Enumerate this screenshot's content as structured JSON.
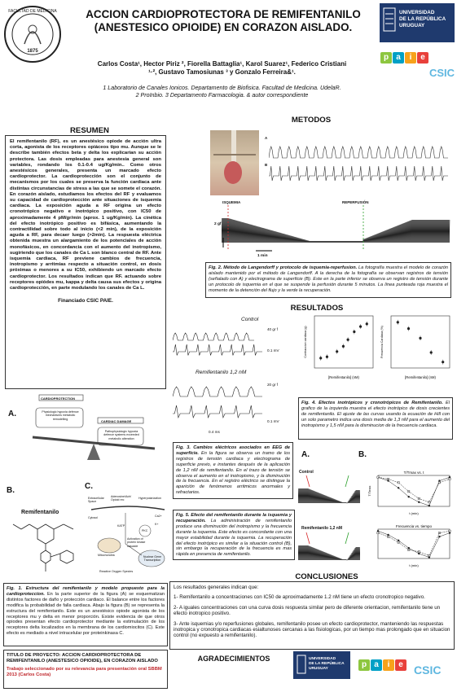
{
  "header": {
    "title_line1": "ACCION CARDIOPROTECTORA DE REMIFENTANILO",
    "title_line2": "(ANESTESICO OPIOIDE) EN CORAZON AISLADO.",
    "authors_line1": "Carlos Costa¹, Hector Piriz ², Fiorella Battaglia¹, Karol Suarez¹, Federico Cristiani",
    "authors_line2": "¹·², Gustavo Tamosiunas ³ y Gonzalo Ferreira&¹.",
    "affil_line1": "1 Laboratorio de Canales Ionicos. Departamento de Biofisica. Facultad de Medicina. UdelaR.",
    "affil_line2": "2 ProInbio. 3 Departamento Farmacologia. & autor correspondiente"
  },
  "logos": {
    "seal_year": "1875",
    "seal_text": "FACULTAD DE MEDICINA",
    "udelar_line1": "UNIVERSIDAD",
    "udelar_line2": "DE LA REPÚBLICA",
    "udelar_line3": "URUGUAY",
    "paie_letters": [
      "p",
      "a",
      "i",
      "e"
    ],
    "csic": "CSIC",
    "colors": {
      "udelar": "#1f3a6e",
      "paie1": "#8dc63f",
      "paie2": "#00a0c6",
      "paie3": "#f7a21b",
      "paie4": "#e8403b",
      "csic": "#5fb7e0"
    }
  },
  "resumen": {
    "heading": "RESUMEN",
    "body": "El remifentanilo (RF), es un anestésico opiode de acción ultra corta, agonista de los receptores opiáceos tipo mu. Aunque se le describe también efectos beta y delta los explicarían su acción protectora. Las dosis empleadas para anestesia general son variables, rondando los 0.1-0.4 ug/Kg/min.. Como otros anestésicos generales, presenta un marcado efecto cardioprotector. La cardioprotección son el conjunto de mecanismos por los cuales se preserva la función cardiaca ante distintas circunstancias de stress a las que se somete el corazón. En corazón aislado, estudiamos los efectos del RF y evaluamos su capacidad de cardioprotección ante situaciones de isquemia cardiaca. La exposición aguda a RF origina un efecto cronotrópico negativo e inotrópico positivo, con IC50 de aproximadamente 4 pM/gr/min (aprox. 1 ug/Kg/min). La cinética del efecto inotrópico positivo es bifásica, aumentando la contractilidad sobre todo al inicio (<2 min), de la exposición aguda a RF, para decaer luego (>2min). La respuesta eléctrica obtenida muestra un alargamiento de los potenciales de acción monofásicos, en concordancia con el aumento del inotropismo, sugiriendo que los canales de Ca L son blanco central de RF. Ante isquemia cardiaca, RF previene cambios de frecuencia, inotropismo y arritmias respecto a situación control, en dosis próximas o menores a su IC50, exhibiendo un marcado efecto cardioprotector. Los resultados indican que RF. actuando sobre receptores opiódes mu, kappa y delta causa sus efectos y origina cardioprotección, en parte modulando los canales de Ca L.",
    "funding": "Financiado CSIC PAIE."
  },
  "fig1": {
    "label_a": "A.",
    "label_b": "B.",
    "label_c": "C.",
    "cardioprotection": "CARDIOPROTECTION",
    "physio": "Physiologic hypoxia defence mechanisms metabolic remodelling",
    "damage": "CARDIAC DAMAGE",
    "patho": "Pathophysiologic hypoxia defence systems exceeded metabolic alteration",
    "remi": "Remifentanilo",
    "cell_labels": [
      "Extracellular Space",
      "Adenosine/Ach/ Opioid rec",
      "Hyperpolarization",
      "Cytosol",
      "Mitochondria",
      "Ca2+",
      "K+",
      "Nuclear Gene Transcription",
      "Reactive Oxygen Species",
      "Activation of protein kinase cascade",
      "PKC",
      "KATP"
    ],
    "caption_title": "Fig. 1. Estructura del remifentanilo y modelo propuesto para la cardioproteccion.",
    "caption_body": "En la parte superior de la figura (A) se esquematizan distintos factores de daño y protección cardiaco. El balance entre los factores modifica la probabilidad de falla cardiaca. Abajo la figura (B) se representa la estructura del remifentanilo. Este es un anestésico opiode agonista de los receptores mu y delta en menor proporción. Existe evidencia de que otros opiodes presentan efecto cardioprotector mediante la estimulación de los receptores delta localizados en la membrana de los cardiomiocitos (C). Este efecto es mediado a nivel intracelular por proteinkinasa C."
  },
  "project": {
    "title": "TITULO DE PROYECTO: ACCION CARDIOPROTECTORA DE REMIFENTANILO (ANESTESICO OPIOIDE), EN CORAZON AISLADO",
    "selected": "Trabajo seleccionado por su relevancia para presentación oral SBBM 2013 (Carlos Costa)",
    "selected_color": "#c0282d"
  },
  "metodos": {
    "heading": "METODOS",
    "trace_a": "A",
    "trace_b": "B",
    "ischemia": "ISQUEMIA",
    "reperfusion": "REPERFUSIÓN",
    "scale_y": "2 gf",
    "scale_x": "1 min",
    "caption_title": "Fig. 2. Método de Langendorff y protocolo de isquemia-reperfusion.",
    "caption_body": "La fotografía muestra el modelo de corazón aislado mantenido por el método de Langendorff. A la derecha de la fotografía se observan registros de tensión (señalado con A) y electrograma de superficie (B). Este en la parte inferior se observa un registro de tensión durante un protocolo de isquemia en el que se suspende la perfusión durante 5 minutos. La línea punteada roja muestra el momento de la detención del flujo y la verde la recuperación.",
    "ischemia_color": "#d62728",
    "reperfusion_color": "#2ca02c"
  },
  "resultados": {
    "heading": "RESULTADOS",
    "control": "Control",
    "remi_dose": "Remifentanilo 1,2 nM",
    "scale_40": "40 gr f",
    "scale_01": "0.1 mV",
    "scale_20": "20 gr f",
    "scale_01b": "0.1 mV",
    "scale_time": "0.4 ms",
    "fig3_title": "Fig. 3. Cambios eléctricos asociados en EEG de superficie.",
    "fig3_body": "En la figura se observa un tramo de los registros de tensión cardiaca y electrograma de superficie previo, e instantes después de la aplicación de 1,2 nM de remifentanilo. En el trazo de tensión se observa el aumento en el inotropismo, y la disminución de la frecuencia. En el registro eléctrico se distingue la aparición de fenómenos arritmicos anormales y refractarios.",
    "fig4_title": "Fig. 4. Efectos inotrópicos y cronotrópicos de Remifentanilo.",
    "fig4_body": "El grafico de la izquierda muestra el efecto inotrópico de dosis crecientes de remifentanilo. El ajuste de las curvas usando la ecuación de Hill con un solo parametro indica una dosis media de 1,3 nM para el aumento del inotropismo y 1,5 nM para la disminucion de la frecuencia cardiaca.",
    "fig4_xlabel": "[Remifentanilo] (nM)",
    "fig5_label_a": "A.",
    "fig5_label_b": "B.",
    "fig5_control": "Control",
    "fig5_remi": "Remifentanilo 1,2 nM",
    "fig5_title": "Fig. 5. Efecto del remifentanilo durante la isquemia y recuperación.",
    "fig5_body": "La administración de remifentanilo produce una disminución del inotropismo y la frecuencia durante la isquemia. Este efecto es concordante con una mayor estabilidad durante la isquemia. La recuperación del efecto inotrópico es similar a la situación control (B), sin embargo la recuperación de la frecuencia es mas rápida en presencia de remifentanilo.",
    "plot1_title": "T/Tmax vs. t",
    "plot2_title": "Frecuencia vs. tiempo",
    "plot_xlabel": "t (min)"
  },
  "conclusiones": {
    "heading": "CONCLUSIONES",
    "intro": "Los resultados generales indican que:",
    "items": [
      "1- Remifentanilo a concentraciones con IC50 de aproximadamente 1.2 nM tiene un efecto cronotropico negativo.",
      "2- A iguales concentraciones con una curva dosis respuesta similar pero de diferente orientacion, remifentanilo tiene un efecto inotropico positivo.",
      "3- Ante isquemias y/o reperfusiones globales, remifentanilo posee un efecto cardioprotector, manteniendo las respuestas inotropica y cronotropica cardiacas esialtunoses cercanas a las fisiologicas, por un tiempo mas prolongado que en situacion control (no expuesto a remifentanilo)."
    ]
  },
  "agradecimientos": {
    "heading": "AGRADECIMIENTOS"
  },
  "chart_data": [
    {
      "type": "scatter",
      "title": "",
      "xlabel": "[Remifentanilo] (nM)",
      "ylabel": "Contraccion cardiaca (g)",
      "x": [
        0.05,
        0.1,
        0.3,
        0.6,
        1,
        2,
        4,
        8
      ],
      "y": [
        100,
        102,
        110,
        118,
        128,
        140,
        148,
        152
      ]
    },
    {
      "type": "scatter",
      "title": "",
      "xlabel": "[Remifentanilo] (nM)",
      "ylabel": "Frecuencia Cardiaca (%)",
      "x": [
        0.1,
        0.3,
        1,
        3,
        10
      ],
      "y": [
        100,
        92,
        80,
        62,
        50
      ]
    },
    {
      "type": "line",
      "title": "T/Tmax vs. t",
      "xlabel": "t (min)",
      "ylabel": "T/Tmax",
      "x": [
        0,
        1,
        2,
        3,
        4,
        5,
        6,
        7
      ],
      "series": [
        {
          "name": "",
          "values": [
            1.0,
            0.9,
            0.7,
            0.45,
            0.3,
            0.2,
            0.9,
            1.0
          ]
        },
        {
          "name": "",
          "values": [
            1.0,
            0.95,
            0.85,
            0.6,
            0.4,
            0.3,
            0.85,
            0.95
          ]
        }
      ]
    },
    {
      "type": "line",
      "title": "Frecuencia vs. tiempo",
      "xlabel": "t (min)",
      "ylabel": "",
      "x": [
        0,
        1,
        2,
        3,
        4,
        5,
        6,
        7
      ],
      "series": [
        {
          "name": "",
          "values": [
            200,
            180,
            150,
            110,
            80,
            60,
            170,
            190
          ]
        },
        {
          "name": "",
          "values": [
            190,
            170,
            140,
            100,
            90,
            70,
            190,
            200
          ]
        }
      ]
    }
  ]
}
